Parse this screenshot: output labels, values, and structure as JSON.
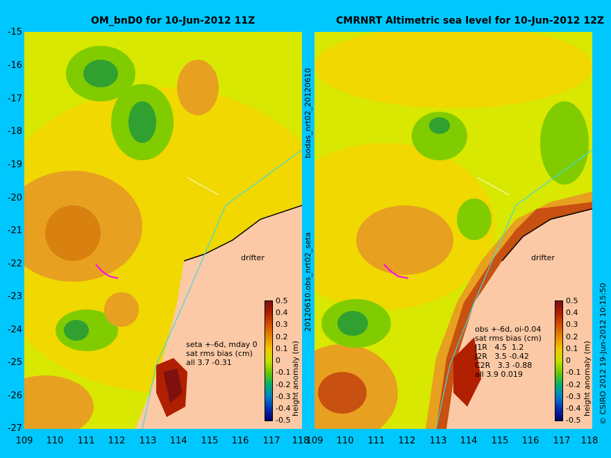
{
  "left_panel": {
    "title": "OM_bnD0 for 10-Jun-2012 11Z",
    "stats": "seta +-6d, mday 0\nsat rms bias (cm)\nall 3.7 -0.31",
    "drifter_label": "drifter"
  },
  "right_panel": {
    "title": "CMRNRT Altimetric sea level  for 10-Jun-2012 12Z",
    "stats": "obs +-6d, oi-0.04\nsat rms bias (cm)\nJ1R   4.5  1.2\nJ2R   3.5 -0.42\nC2R   3.3 -0.88\nall 3.9 0.019",
    "drifter_label": "drifter"
  },
  "side_labels": {
    "top": "bodas_nrt02_20120610",
    "bottom": "20120610.obs_nrt02_seta"
  },
  "credit": "© CSIRO 2012   19-Jun-2012 10:15:50",
  "axes": {
    "y_ticks": [
      "-15",
      "-16",
      "-17",
      "-18",
      "-19",
      "-20",
      "-21",
      "-22",
      "-23",
      "-24",
      "-25",
      "-26",
      "-27"
    ],
    "x_ticks_left": [
      "109",
      "110",
      "111",
      "112",
      "113",
      "114",
      "115",
      "116",
      "117",
      "118"
    ],
    "x_ticks_right": [
      "109",
      "110",
      "111",
      "112",
      "113",
      "114",
      "115",
      "116",
      "117",
      "118"
    ]
  },
  "colorbar": {
    "title": "height anomaly (m)",
    "ticks": [
      "0.5",
      "0.4",
      "0.3",
      "0.2",
      "0.1",
      "0",
      "-0.1",
      "-0.2",
      "-0.3",
      "-0.4",
      "-0.5"
    ],
    "colors": [
      "#7f1010",
      "#b02000",
      "#d45000",
      "#e88a00",
      "#f2c600",
      "#c8e000",
      "#6ac800",
      "#00b070",
      "#0080c8",
      "#0030b0",
      "#000070"
    ]
  },
  "map_colors": {
    "land": "#fbc9a5",
    "coast_line": "#40d8e0",
    "drifter": "#ff00ff"
  }
}
